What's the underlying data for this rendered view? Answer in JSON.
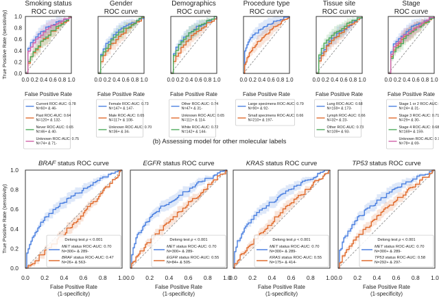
{
  "section_b_caption": "(b) Assessing model for other molecular labels",
  "colors": {
    "blue": "#4a7fe0",
    "orange": "#e06a2c",
    "green": "#4caa5a",
    "pink": "#cf5fa8",
    "diag": "#999999"
  },
  "chart_data": [
    {
      "type": "line",
      "title": [
        "Smoking status",
        "ROC curve"
      ],
      "xlabel": "False Positive Rate",
      "ylabel": "True Positive Rate (sensitivity)",
      "xlim": [
        0,
        1
      ],
      "ylim": [
        0,
        1
      ],
      "xticks": [
        "0.0",
        "0.2",
        "0.4",
        "0.6",
        "0.8",
        "1.0"
      ],
      "yticks": [
        "0.0",
        "0.2",
        "0.4",
        "0.6",
        "0.8",
        "1.0"
      ],
      "series": [
        {
          "name": "Current ROC-AUC: 0.78",
          "n": "N=60+ & 46-",
          "color": "blue",
          "auc": 0.78
        },
        {
          "name": "Past ROC-AUC: 0.64",
          "n": "N=120+ & 132-",
          "color": "orange",
          "auc": 0.64
        },
        {
          "name": "Never ROC-AUC: 0.65",
          "n": "N=46+ & 40-",
          "color": "green",
          "auc": 0.65
        },
        {
          "name": "Unknown ROC-AUC: 0.75",
          "n": "N=74+ & 71-",
          "color": "pink",
          "auc": 0.75
        }
      ]
    },
    {
      "type": "line",
      "title": [
        "Gender",
        "ROC curve"
      ],
      "xlabel": "False Positive Rate",
      "xlim": [
        0,
        1
      ],
      "ylim": [
        0,
        1
      ],
      "xticks": [
        "0.0",
        "0.2",
        "0.4",
        "0.6",
        "0.8",
        "1.0"
      ],
      "series": [
        {
          "name": "Female ROC-AUC: 0.73",
          "n": "N=147+ & 147-",
          "color": "blue",
          "auc": 0.73
        },
        {
          "name": "Male ROC-AUC: 0.65",
          "n": "N=117+ & 108-",
          "color": "orange",
          "auc": 0.65
        },
        {
          "name": "Unknown ROC-AUC: 0.70",
          "n": "N=36+ & 34-",
          "color": "green",
          "auc": 0.7
        }
      ]
    },
    {
      "type": "line",
      "title": [
        "Demographics",
        "ROC curve"
      ],
      "xlabel": "False Positive Rate",
      "xlim": [
        0,
        1
      ],
      "ylim": [
        0,
        1
      ],
      "xticks": [
        "0.0",
        "0.2",
        "0.4",
        "0.6",
        "0.8",
        "1.0"
      ],
      "series": [
        {
          "name": "Other ROC-AUC: 0.74",
          "n": "N=47+ & 31-",
          "color": "blue",
          "auc": 0.74
        },
        {
          "name": "Unknown ROC-AUC: 0.65",
          "n": "N=111+ & 114-",
          "color": "orange",
          "auc": 0.65
        },
        {
          "name": "White ROC-AUC: 0.72",
          "n": "N=142+ & 144-",
          "color": "green",
          "auc": 0.72
        }
      ]
    },
    {
      "type": "line",
      "title": [
        "Procedure type",
        "ROC curve"
      ],
      "xlabel": "False Positive Rate",
      "xlim": [
        0,
        1
      ],
      "ylim": [
        0,
        1
      ],
      "xticks": [
        "0.0",
        "0.2",
        "0.4",
        "0.6",
        "0.8",
        "1.0"
      ],
      "series": [
        {
          "name": "Large specimens ROC-AUC: 0.79",
          "n": "N=90+ & 92-",
          "color": "blue",
          "auc": 0.79
        },
        {
          "name": "Small specimens ROC-AUC: 0.66",
          "n": "N=210+ & 197-",
          "color": "orange",
          "auc": 0.66
        }
      ]
    },
    {
      "type": "line",
      "title": [
        "Tissue site",
        "ROC curve"
      ],
      "xlabel": "False Positive Rate",
      "xlim": [
        0,
        1
      ],
      "ylim": [
        0,
        1
      ],
      "xticks": [
        "0.0",
        "0.2",
        "0.4",
        "0.6",
        "0.8",
        "1.0"
      ],
      "series": [
        {
          "name": "Lung ROC-AUC: 0.68",
          "n": "N=159+ & 173-",
          "color": "blue",
          "auc": 0.68
        },
        {
          "name": "Lymph ROC-AUC: 0.66",
          "n": "N=32+ & 23-",
          "color": "orange",
          "auc": 0.66
        },
        {
          "name": "Other ROC-AUC: 0.73",
          "n": "N=109+ & 93-",
          "color": "green",
          "auc": 0.73
        }
      ]
    },
    {
      "type": "line",
      "title": [
        "Stage",
        "ROC curve"
      ],
      "xlabel": "False Positive Rate",
      "xlim": [
        0,
        1
      ],
      "ylim": [
        0,
        1
      ],
      "xticks": [
        "0.0",
        "0.2",
        "0.4",
        "0.6",
        "0.8",
        "1.0"
      ],
      "series": [
        {
          "name": "Stage 1 or 2 ROC-AUC: 0.76",
          "n": "N=24+ & 31-",
          "color": "blue",
          "auc": 0.76
        },
        {
          "name": "Stage 3 ROC-AUC: 0.71",
          "n": "N=29+ & 30-",
          "color": "orange",
          "auc": 0.71
        },
        {
          "name": "Stage 4 ROC-AUC: 0.68",
          "n": "N=169+ & 159-",
          "color": "green",
          "auc": 0.68
        },
        {
          "name": "Unknown ROC-AUC: 0.73",
          "n": "N=78+ & 69-",
          "color": "pink",
          "auc": 0.73
        }
      ]
    },
    {
      "type": "line",
      "title_italic": "BRAF",
      "title_rest": " status ROC curve",
      "xlabel": [
        "False Positive Rate",
        "(1-specificity)"
      ],
      "ylabel": "True Positive Rate (sensitivity)",
      "xlim": [
        0,
        1
      ],
      "ylim": [
        0,
        1
      ],
      "xticks": [
        "0.0",
        "0.2",
        "0.4",
        "0.6",
        "0.8",
        "1.0"
      ],
      "yticks": [
        "0.0",
        "0.2",
        "0.4",
        "0.6",
        "0.8",
        "1.0"
      ],
      "legend_title_pre": "Delong test ",
      "legend_title_p": "p",
      "legend_title_post": " < 0.001",
      "series": [
        {
          "gene": "MET",
          "name": " status ROC-AUC: 0.70",
          "n": "N=300+ & 289-",
          "color": "blue",
          "auc": 0.7
        },
        {
          "gene": "BRAF",
          "name": " status ROC-AUC: 0.47",
          "n": "N=26+ & 563-",
          "color": "orange",
          "auc": 0.47
        }
      ]
    },
    {
      "type": "line",
      "title_italic": "EGFR",
      "title_rest": " status ROC curve",
      "xlabel": [
        "False Positive Rate",
        "(1-specificity)"
      ],
      "xlim": [
        0,
        1
      ],
      "ylim": [
        0,
        1
      ],
      "xticks": [
        "0.0",
        "0.2",
        "0.4",
        "0.6",
        "0.8",
        "1.0"
      ],
      "legend_title_pre": "Delong test ",
      "legend_title_p": "p",
      "legend_title_post": " < 0.001",
      "series": [
        {
          "gene": "MET",
          "name": " status ROC-AUC: 0.70",
          "n": "N=300+ & 289-",
          "color": "blue",
          "auc": 0.7
        },
        {
          "gene": "EGFR",
          "name": " status ROC-AUC: 0.55",
          "n": "N=84+ & 505-",
          "color": "orange",
          "auc": 0.55
        }
      ]
    },
    {
      "type": "line",
      "title_italic": "KRAS",
      "title_rest": " status ROC curve",
      "xlabel": [
        "False Positive Rate",
        "(1-specificity)"
      ],
      "xlim": [
        0,
        1
      ],
      "ylim": [
        0,
        1
      ],
      "xticks": [
        "0.0",
        "0.2",
        "0.4",
        "0.6",
        "0.8",
        "1.0"
      ],
      "legend_title_pre": "Delong test ",
      "legend_title_p": "p",
      "legend_title_post": " < 0.001",
      "series": [
        {
          "gene": "MET",
          "name": " status ROC-AUC: 0.70",
          "n": "N=300+ & 289-",
          "color": "blue",
          "auc": 0.7
        },
        {
          "gene": "KRAS",
          "name": " status ROC-AUC: 0.55",
          "n": "N=175+ & 414-",
          "color": "orange",
          "auc": 0.55
        }
      ]
    },
    {
      "type": "line",
      "title_italic": "TP53",
      "title_rest": " status ROC curve",
      "xlabel": [
        "False Positive Rate",
        "(1-specificity)"
      ],
      "xlim": [
        0,
        1
      ],
      "ylim": [
        0,
        1
      ],
      "xticks": [
        "0.0",
        "0.2",
        "0.4",
        "0.6",
        "0.8",
        "1.0"
      ],
      "legend_title_pre": "Delong test ",
      "legend_title_p": "p",
      "legend_title_post": " < 0.001",
      "series": [
        {
          "gene": "MET",
          "name": " status ROC-AUC: 0.70",
          "n": "N=300+ & 289-",
          "color": "blue",
          "auc": 0.7
        },
        {
          "gene": "TP53",
          "name": " status ROC-AUC: 0.58",
          "n": "N=292+ & 297-",
          "color": "orange",
          "auc": 0.58
        }
      ]
    }
  ]
}
